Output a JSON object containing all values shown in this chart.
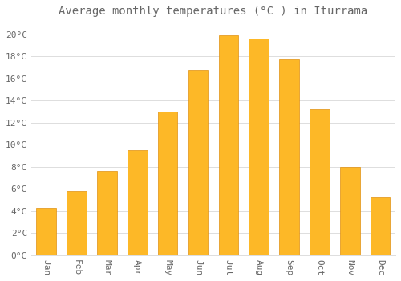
{
  "title": "Average monthly temperatures (°C ) in Iturrama",
  "months": [
    "Jan",
    "Feb",
    "Mar",
    "Apr",
    "May",
    "Jun",
    "Jul",
    "Aug",
    "Sep",
    "Oct",
    "Nov",
    "Dec"
  ],
  "values": [
    4.3,
    5.8,
    7.6,
    9.5,
    13.0,
    16.8,
    19.9,
    19.6,
    17.7,
    13.2,
    8.0,
    5.3
  ],
  "bar_color": "#FDB827",
  "bar_edge_color": "#E09010",
  "background_color": "#FFFFFF",
  "plot_bg_color": "#FFFFFF",
  "grid_color": "#DDDDDD",
  "text_color": "#666666",
  "ylim": [
    0,
    21
  ],
  "yticks": [
    0,
    2,
    4,
    6,
    8,
    10,
    12,
    14,
    16,
    18,
    20
  ],
  "title_fontsize": 10,
  "tick_fontsize": 8,
  "bar_width": 0.65
}
